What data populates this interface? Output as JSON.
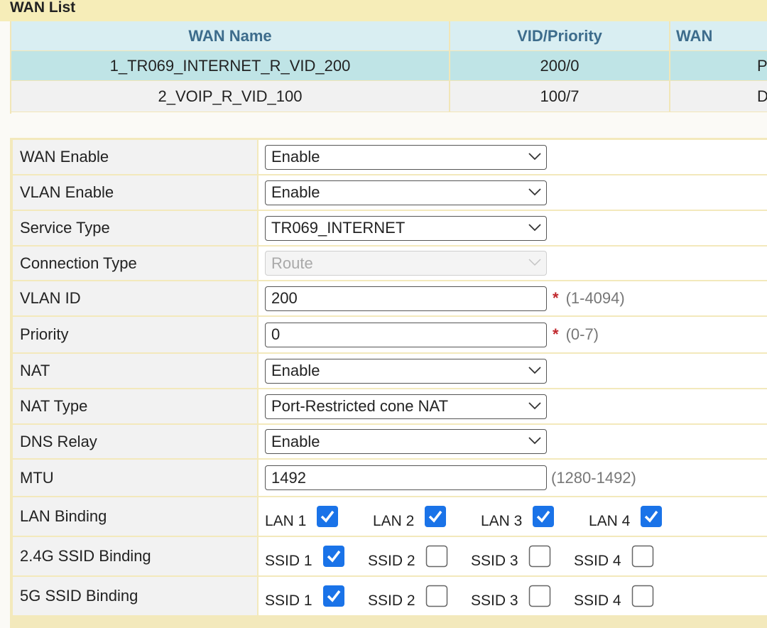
{
  "wan_list": {
    "title": "WAN List",
    "headers": [
      "WAN Name",
      "VID/Priority",
      "WAN"
    ],
    "rows": [
      [
        "1_TR069_INTERNET_R_VID_200",
        "200/0",
        "P"
      ],
      [
        "2_VOIP_R_VID_100",
        "100/7",
        "D"
      ]
    ]
  },
  "form": {
    "rows": [
      {
        "label": "WAN Enable",
        "control": "select",
        "value": "Enable"
      },
      {
        "label": "VLAN Enable",
        "control": "select",
        "value": "Enable"
      },
      {
        "label": "Service Type",
        "control": "select",
        "value": "TR069_INTERNET"
      },
      {
        "label": "Connection Type",
        "control": "select",
        "value": "Route",
        "disabled": true
      },
      {
        "label": "VLAN ID",
        "control": "input",
        "value": "200",
        "required": "*",
        "hint": "(1-4094)"
      },
      {
        "label": "Priority",
        "control": "input",
        "value": "0",
        "required": "*",
        "hint": "(0-7)"
      },
      {
        "label": "NAT",
        "control": "select",
        "value": "Enable"
      },
      {
        "label": "NAT Type",
        "control": "select",
        "value": "Port-Restricted cone NAT"
      },
      {
        "label": "DNS Relay",
        "control": "select",
        "value": "Enable"
      },
      {
        "label": "MTU",
        "control": "input",
        "value": "1492",
        "hint": "(1280-1492)"
      },
      {
        "label": "LAN Binding",
        "control": "checkboxes",
        "items": [
          {
            "label": "LAN 1",
            "checked": true
          },
          {
            "label": "LAN 2",
            "checked": true
          },
          {
            "label": "LAN 3",
            "checked": true
          },
          {
            "label": "LAN 4",
            "checked": true
          }
        ]
      },
      {
        "label": "2.4G SSID Binding",
        "control": "checkboxes",
        "items": [
          {
            "label": "SSID 1",
            "checked": true
          },
          {
            "label": "SSID 2",
            "checked": false
          },
          {
            "label": "SSID 3",
            "checked": false
          },
          {
            "label": "SSID 4",
            "checked": false
          }
        ]
      },
      {
        "label": "5G SSID Binding",
        "control": "checkboxes",
        "items": [
          {
            "label": "SSID 1",
            "checked": true
          },
          {
            "label": "SSID 2",
            "checked": false
          },
          {
            "label": "SSID 3",
            "checked": false
          },
          {
            "label": "SSID 4",
            "checked": false
          }
        ]
      }
    ]
  }
}
